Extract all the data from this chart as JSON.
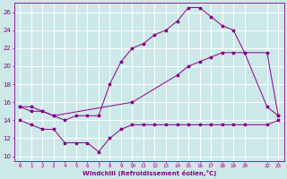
{
  "xlabel": "Windchill (Refroidissement éolien,°C)",
  "background_color": "#cce8e8",
  "grid_color": "#ffffff",
  "line_color": "#880088",
  "xlim": [
    -0.5,
    23.5
  ],
  "ylim": [
    9.5,
    27.0
  ],
  "yticks": [
    10,
    12,
    14,
    16,
    18,
    20,
    22,
    24,
    26
  ],
  "xticks": [
    0,
    1,
    2,
    3,
    4,
    5,
    6,
    7,
    8,
    9,
    10,
    11,
    12,
    13,
    14,
    15,
    16,
    17,
    18,
    19,
    20,
    22,
    23
  ],
  "xtick_labels": [
    "0",
    "1",
    "2",
    "3",
    "4",
    "5",
    "6",
    "7",
    "8",
    "9",
    "10",
    "11",
    "12",
    "13",
    "14",
    "15",
    "16",
    "17",
    "18",
    "19",
    "20",
    "22",
    "23"
  ],
  "series1_x": [
    0,
    1,
    2,
    3,
    4,
    5,
    6,
    7,
    8,
    9,
    10,
    11,
    12,
    13,
    14,
    15,
    16,
    17,
    18,
    19,
    20,
    22,
    23
  ],
  "series1_y": [
    14.0,
    13.5,
    13.0,
    13.0,
    11.5,
    11.5,
    11.5,
    10.5,
    12.0,
    13.0,
    13.5,
    13.5,
    13.5,
    13.5,
    13.5,
    13.5,
    13.5,
    13.5,
    13.5,
    13.5,
    13.5,
    13.5,
    14.0
  ],
  "series2_x": [
    0,
    1,
    2,
    3,
    4,
    5,
    6,
    7,
    8,
    9,
    10,
    11,
    12,
    13,
    14,
    15,
    16,
    17,
    18,
    19,
    20,
    22,
    23
  ],
  "series2_y": [
    15.5,
    15.0,
    15.0,
    14.5,
    14.0,
    14.5,
    14.5,
    14.5,
    18.0,
    20.5,
    22.0,
    22.5,
    23.5,
    24.0,
    25.0,
    26.5,
    26.5,
    25.5,
    24.5,
    24.0,
    21.5,
    15.5,
    14.5
  ],
  "series3_x": [
    0,
    1,
    2,
    3,
    10,
    14,
    15,
    16,
    17,
    18,
    19,
    20,
    22,
    23
  ],
  "series3_y": [
    15.5,
    15.5,
    15.0,
    14.5,
    16.0,
    19.0,
    20.0,
    20.5,
    21.0,
    21.5,
    21.5,
    21.5,
    21.5,
    14.5
  ]
}
